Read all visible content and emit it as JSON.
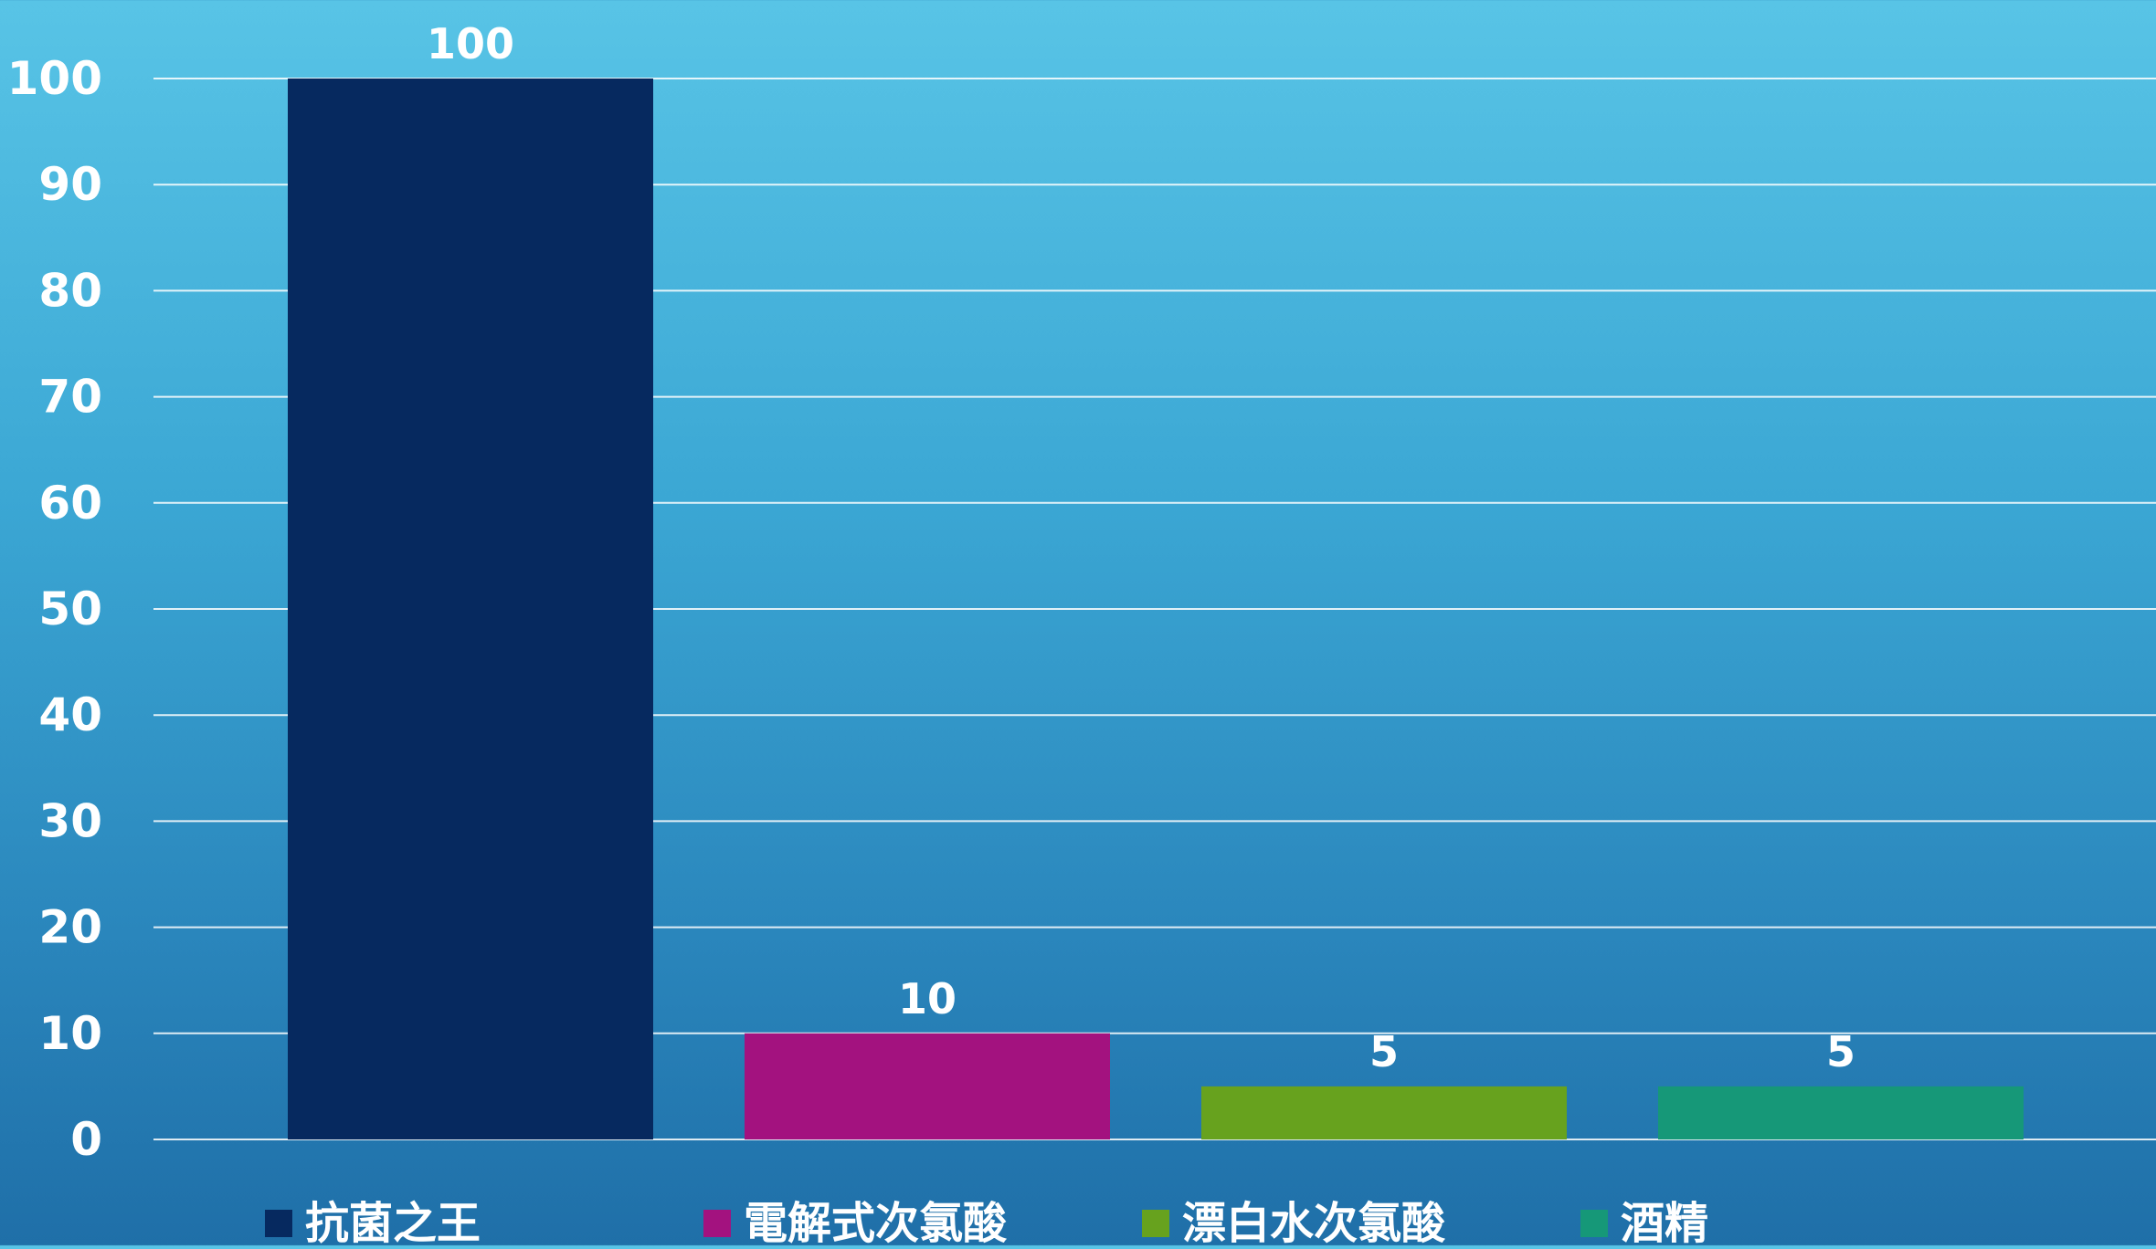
{
  "chart_data": {
    "type": "bar",
    "categories": [
      "抗菌之王",
      "電解式次氯酸",
      "漂白水次氯酸",
      "酒精"
    ],
    "values": [
      100,
      10,
      5,
      5
    ],
    "data_labels": [
      "100",
      "10",
      "5",
      "5"
    ],
    "colors": [
      "#06295f",
      "#a3127f",
      "#67a21e",
      "#169878"
    ],
    "ylim": [
      0,
      100
    ],
    "yticks": [
      0,
      10,
      20,
      30,
      40,
      50,
      60,
      70,
      80,
      90,
      100
    ],
    "grid": true,
    "legend": "bottom",
    "title": "",
    "xlabel": "",
    "ylabel": ""
  }
}
